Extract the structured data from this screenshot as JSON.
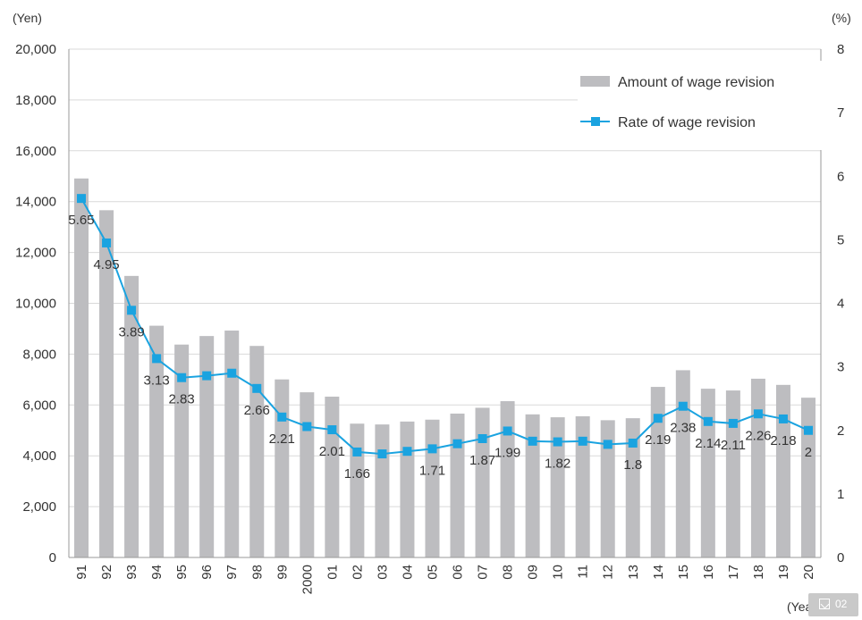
{
  "chart_data": {
    "type": "bar",
    "y_unit_left": "(Yen)",
    "y_unit_right": "(%)",
    "x_unit": "(Year)",
    "categories": [
      "91",
      "92",
      "93",
      "94",
      "95",
      "96",
      "97",
      "98",
      "99",
      "2000",
      "01",
      "02",
      "03",
      "04",
      "05",
      "06",
      "07",
      "08",
      "09",
      "10",
      "11",
      "12",
      "13",
      "14",
      "15",
      "16",
      "17",
      "18",
      "19",
      "20"
    ],
    "ylim_left": [
      0,
      20000
    ],
    "yticks_left": [
      "0",
      "2,000",
      "4,000",
      "6,000",
      "8,000",
      "10,000",
      "12,000",
      "14,000",
      "16,000",
      "18,000",
      "20,000"
    ],
    "ylim_right": [
      0,
      8
    ],
    "yticks_right": [
      "0",
      "1",
      "2",
      "3",
      "4",
      "5",
      "6",
      "7",
      "8"
    ],
    "grid": true,
    "legend_position": "top-right",
    "series": [
      {
        "name": "Amount of wage revision",
        "kind": "bar",
        "axis": "left",
        "color": "#bdbdc0",
        "values": [
          14911,
          13662,
          11077,
          9118,
          8376,
          8712,
          8927,
          8323,
          7005,
          6499,
          6328,
          5265,
          5233,
          5348,
          5422,
          5661,
          5890,
          6149,
          5630,
          5516,
          5555,
          5400,
          5478,
          6711,
          7367,
          6639,
          6570,
          7033,
          6790,
          6286
        ]
      },
      {
        "name": "Rate of wage revision",
        "kind": "line",
        "axis": "right",
        "color": "#1aa3e0",
        "values": [
          5.65,
          4.95,
          3.89,
          3.13,
          2.83,
          2.86,
          2.9,
          2.66,
          2.21,
          2.06,
          2.01,
          1.66,
          1.63,
          1.67,
          1.71,
          1.79,
          1.87,
          1.99,
          1.83,
          1.82,
          1.83,
          1.78,
          1.8,
          2.19,
          2.38,
          2.14,
          2.11,
          2.26,
          2.18,
          2.0
        ],
        "labels": [
          "5.65",
          "4.95",
          "3.89",
          "3.13",
          "2.83",
          "",
          "",
          "2.66",
          "2.21",
          "",
          "2.01",
          "1.66",
          "",
          "",
          "1.71",
          "",
          "1.87",
          "1.99",
          "",
          "1.82",
          "",
          "",
          "1.8",
          "2.19",
          "2.38",
          "2.14",
          "2.11",
          "2.26",
          "2.18",
          "2"
        ]
      }
    ]
  },
  "badge": {
    "text": "02",
    "icon": "image-icon"
  }
}
